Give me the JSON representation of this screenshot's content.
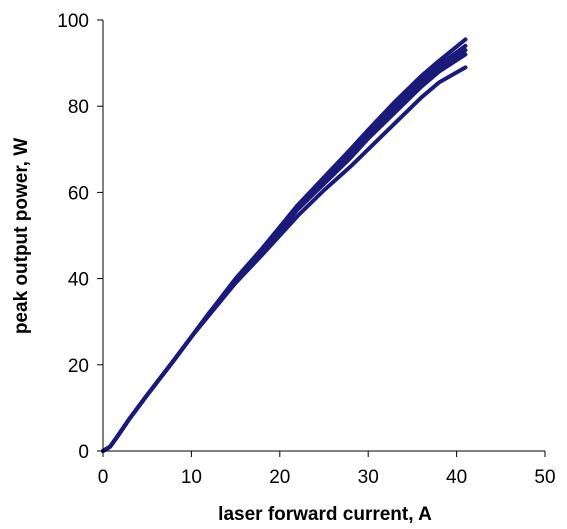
{
  "chart_data": {
    "type": "line",
    "title": "",
    "xlabel": "laser forward current, A",
    "ylabel": "peak output power, W",
    "xlim": [
      0,
      50
    ],
    "ylim": [
      0,
      100
    ],
    "xticks": [
      0,
      10,
      20,
      30,
      40,
      50
    ],
    "yticks": [
      0,
      20,
      40,
      60,
      80,
      100
    ],
    "grid": false,
    "legend": "none",
    "line_color": "#1a1a7a",
    "series": [
      {
        "x": [
          0,
          0.8,
          1.5,
          3,
          5,
          8,
          10,
          12,
          15,
          18,
          20,
          22,
          25,
          28,
          30,
          33,
          36,
          38,
          41
        ],
        "y": [
          0,
          1,
          3,
          7.5,
          13,
          21,
          26.5,
          32,
          40,
          47,
          52,
          57,
          63.5,
          70,
          74.5,
          81,
          87,
          90.5,
          95.5
        ]
      },
      {
        "x": [
          0,
          0.8,
          1.5,
          3,
          5,
          8,
          10,
          12,
          15,
          18,
          20,
          22,
          25,
          28,
          30,
          33,
          36,
          38,
          41
        ],
        "y": [
          0,
          1,
          3,
          7.5,
          13,
          21,
          26.5,
          32,
          39.5,
          46.5,
          51.5,
          56.5,
          63,
          69,
          73.5,
          80,
          86,
          89.5,
          94
        ]
      },
      {
        "x": [
          0,
          0.8,
          1.5,
          3,
          5,
          8,
          10,
          12,
          15,
          18,
          20,
          22,
          25,
          28,
          30,
          33,
          36,
          38,
          41
        ],
        "y": [
          0,
          1,
          3,
          7.5,
          13,
          21,
          26.5,
          32,
          39.5,
          46.5,
          51.5,
          56.5,
          62.5,
          68.5,
          73,
          79,
          85,
          88.5,
          93
        ]
      },
      {
        "x": [
          0,
          0.8,
          1.5,
          3,
          5,
          8,
          10,
          12,
          15,
          18,
          20,
          22,
          25,
          28,
          30,
          33,
          36,
          38,
          41
        ],
        "y": [
          0,
          1,
          3,
          7.5,
          13,
          21,
          26.5,
          32,
          39,
          46,
          51,
          56,
          62,
          68,
          72.5,
          78.5,
          84.5,
          88,
          92
        ]
      },
      {
        "x": [
          0,
          0.8,
          1.5,
          3,
          5,
          8,
          10,
          12,
          15,
          18,
          20,
          22,
          25,
          28,
          30,
          33,
          36,
          38,
          41
        ],
        "y": [
          0,
          1,
          3,
          7.5,
          13,
          21,
          26.5,
          31.5,
          39,
          45.5,
          50,
          54.5,
          60.5,
          66,
          70,
          76,
          82,
          85.5,
          89
        ]
      }
    ]
  }
}
